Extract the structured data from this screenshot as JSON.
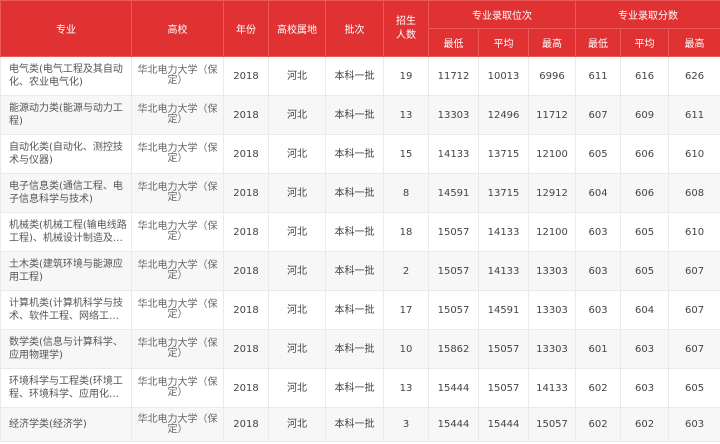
{
  "header": {
    "major": "专业",
    "school": "高校",
    "year": "年份",
    "location": "高校属地",
    "batch": "批次",
    "enrollment": "招生人数",
    "rank_group": "专业录取位次",
    "score_group": "专业录取分数",
    "min": "最低",
    "avg": "平均",
    "max": "最高"
  },
  "colors": {
    "header_bg": "#e03232",
    "stripe": "#f7f7f7"
  },
  "rows": [
    {
      "major": "电气类(电气工程及其自动化、农业电气化)",
      "school": "华北电力大学（保定）",
      "year": "2018",
      "location": "河北",
      "batch": "本科一批",
      "enrollment": "19",
      "rank_min": "11712",
      "rank_avg": "10013",
      "rank_max": "6996",
      "score_min": "611",
      "score_avg": "616",
      "score_max": "626"
    },
    {
      "major": "能源动力类(能源与动力工程)",
      "school": "华北电力大学（保定）",
      "year": "2018",
      "location": "河北",
      "batch": "本科一批",
      "enrollment": "13",
      "rank_min": "13303",
      "rank_avg": "12496",
      "rank_max": "11712",
      "score_min": "607",
      "score_avg": "609",
      "score_max": "611"
    },
    {
      "major": "自动化类(自动化、测控技术与仪器)",
      "school": "华北电力大学（保定）",
      "year": "2018",
      "location": "河北",
      "batch": "本科一批",
      "enrollment": "15",
      "rank_min": "14133",
      "rank_avg": "13715",
      "rank_max": "12100",
      "score_min": "605",
      "score_avg": "606",
      "score_max": "610"
    },
    {
      "major": "电子信息类(通信工程、电子信息科学与技术)",
      "school": "华北电力大学（保定）",
      "year": "2018",
      "location": "河北",
      "batch": "本科一批",
      "enrollment": "8",
      "rank_min": "14591",
      "rank_avg": "13715",
      "rank_max": "12912",
      "score_min": "604",
      "score_avg": "606",
      "score_max": "608"
    },
    {
      "major": "机械类(机械工程(输电线路工程)、机械设计制造及其...",
      "school": "华北电力大学（保定）",
      "year": "2018",
      "location": "河北",
      "batch": "本科一批",
      "enrollment": "18",
      "rank_min": "15057",
      "rank_avg": "14133",
      "rank_max": "12100",
      "score_min": "603",
      "score_avg": "605",
      "score_max": "610"
    },
    {
      "major": "土木类(建筑环境与能源应用工程)",
      "school": "华北电力大学（保定）",
      "year": "2018",
      "location": "河北",
      "batch": "本科一批",
      "enrollment": "2",
      "rank_min": "15057",
      "rank_avg": "14133",
      "rank_max": "13303",
      "score_min": "603",
      "score_avg": "605",
      "score_max": "607"
    },
    {
      "major": "计算机类(计算机科学与技术、软件工程、网络工程...",
      "school": "华北电力大学（保定）",
      "year": "2018",
      "location": "河北",
      "batch": "本科一批",
      "enrollment": "17",
      "rank_min": "15057",
      "rank_avg": "14591",
      "rank_max": "13303",
      "score_min": "603",
      "score_avg": "604",
      "score_max": "607"
    },
    {
      "major": "数学类(信息与计算科学、应用物理学)",
      "school": "华北电力大学（保定）",
      "year": "2018",
      "location": "河北",
      "batch": "本科一批",
      "enrollment": "10",
      "rank_min": "15862",
      "rank_avg": "15057",
      "rank_max": "13303",
      "score_min": "601",
      "score_avg": "603",
      "score_max": "607"
    },
    {
      "major": "环境科学与工程类(环境工程、环境科学、应用化学...",
      "school": "华北电力大学（保定）",
      "year": "2018",
      "location": "河北",
      "batch": "本科一批",
      "enrollment": "13",
      "rank_min": "15444",
      "rank_avg": "15057",
      "rank_max": "14133",
      "score_min": "602",
      "score_avg": "603",
      "score_max": "605"
    },
    {
      "major": "经济学类(经济学)",
      "school": "华北电力大学（保定）",
      "year": "2018",
      "location": "河北",
      "batch": "本科一批",
      "enrollment": "3",
      "rank_min": "15444",
      "rank_avg": "15444",
      "rank_max": "15057",
      "score_min": "602",
      "score_avg": "602",
      "score_max": "603"
    }
  ]
}
